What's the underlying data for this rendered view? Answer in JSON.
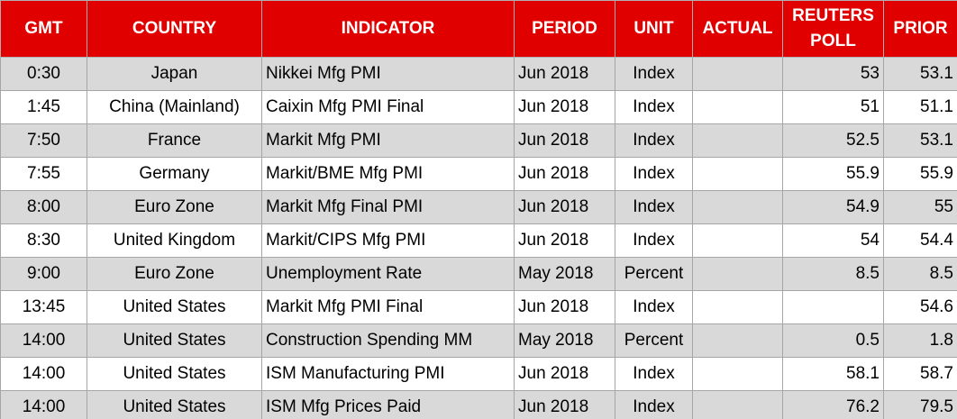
{
  "table": {
    "headers": [
      "GMT",
      "COUNTRY",
      "INDICATOR",
      "PERIOD",
      "UNIT",
      "ACTUAL",
      "REUTERS POLL",
      "PRIOR"
    ],
    "rows": [
      [
        "0:30",
        "Japan",
        "Nikkei Mfg PMI",
        "Jun 2018",
        "Index",
        null,
        "53",
        "53.1"
      ],
      [
        "1:45",
        "China (Mainland)",
        "Caixin Mfg PMI Final",
        "Jun 2018",
        "Index",
        null,
        "51",
        "51.1"
      ],
      [
        "7:50",
        "France",
        "Markit Mfg PMI",
        "Jun 2018",
        "Index",
        null,
        "52.5",
        "53.1"
      ],
      [
        "7:55",
        "Germany",
        "Markit/BME Mfg PMI",
        "Jun 2018",
        "Index",
        null,
        "55.9",
        "55.9"
      ],
      [
        "8:00",
        "Euro Zone",
        "Markit Mfg Final PMI",
        "Jun 2018",
        "Index",
        null,
        "54.9",
        "55"
      ],
      [
        "8:30",
        "United Kingdom",
        "Markit/CIPS Mfg PMI",
        "Jun 2018",
        "Index",
        null,
        "54",
        "54.4"
      ],
      [
        "9:00",
        "Euro Zone",
        "Unemployment Rate",
        "May 2018",
        "Percent",
        null,
        "8.5",
        "8.5"
      ],
      [
        "13:45",
        "United States",
        "Markit Mfg PMI Final",
        "Jun 2018",
        "Index",
        null,
        null,
        "54.6"
      ],
      [
        "14:00",
        "United States",
        "Construction Spending MM",
        "May 2018",
        "Percent",
        null,
        "0.5",
        "1.8"
      ],
      [
        "14:00",
        "United States",
        "ISM Manufacturing PMI",
        "Jun 2018",
        "Index",
        null,
        "58.1",
        "58.7"
      ],
      [
        "14:00",
        "United States",
        "ISM Mfg Prices Paid",
        "Jun 2018",
        "Index",
        null,
        "76.2",
        "79.5"
      ]
    ]
  }
}
